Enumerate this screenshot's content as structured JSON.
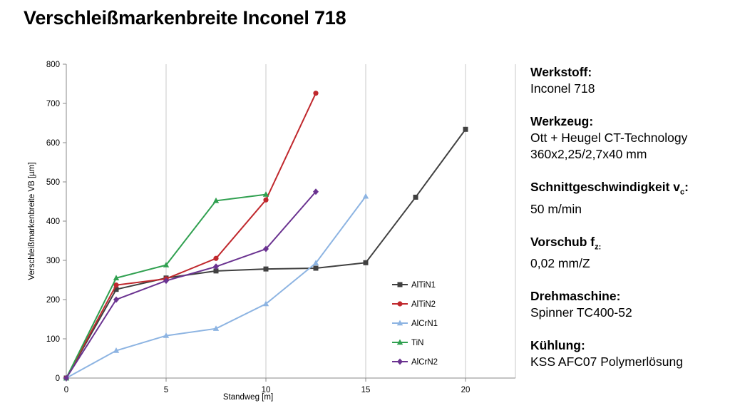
{
  "title": "Verschleißmarkenbreite Inconel 718",
  "info": [
    {
      "label": "Werkstoff:",
      "lines": [
        "Inconel 718"
      ]
    },
    {
      "label": "Werkzeug:",
      "lines": [
        "Ott + Heugel CT-Technology",
        "360x2,25/2,7x40 mm"
      ]
    },
    {
      "label_main": "Schnittgeschwindigkeit v",
      "label_sub": "c",
      "label_end": ":",
      "lines": [
        "50 m/min"
      ]
    },
    {
      "label_main": "Vorschub f",
      "label_sub": "z:",
      "label_end": "",
      "lines": [
        "0,02 mm/Z"
      ]
    },
    {
      "label": "Drehmaschine:",
      "lines": [
        "Spinner TC400-52"
      ]
    },
    {
      "label": "Kühlung:",
      "lines": [
        "KSS AFC07 Polymerlösung"
      ]
    }
  ],
  "chart_data": {
    "type": "line",
    "xlabel": "Standweg [m]",
    "ylabel": "Verschleißmarkenbreite VB [µm]",
    "xlim": [
      0,
      22.5
    ],
    "ylim": [
      0,
      800
    ],
    "xticks": [
      0,
      5,
      10,
      15,
      20
    ],
    "yticks": [
      0,
      100,
      200,
      300,
      400,
      500,
      600,
      700,
      800
    ],
    "grid": "vertical",
    "legend_position": "lower-right",
    "series": [
      {
        "name": "AlTiN1",
        "color": "#404040",
        "marker": "square",
        "x": [
          0,
          2.5,
          5,
          7.5,
          10,
          12.5,
          15,
          17.5,
          20
        ],
        "y": [
          0,
          226,
          255,
          273,
          278,
          280,
          294,
          461,
          634
        ]
      },
      {
        "name": "AlTiN2",
        "color": "#c0282d",
        "marker": "circle",
        "x": [
          0,
          2.5,
          5,
          7.5,
          10,
          12.5
        ],
        "y": [
          0,
          237,
          253,
          305,
          454,
          726
        ]
      },
      {
        "name": "AlCrN1",
        "color": "#8db4e2",
        "marker": "triangle",
        "x": [
          0,
          2.5,
          5,
          7.5,
          10,
          12.5,
          15
        ],
        "y": [
          0,
          70,
          108,
          126,
          189,
          293,
          463
        ]
      },
      {
        "name": "TiN",
        "color": "#30a050",
        "marker": "triangle",
        "x": [
          0,
          2.5,
          5,
          7.5,
          10
        ],
        "y": [
          0,
          255,
          288,
          452,
          468
        ]
      },
      {
        "name": "AlCrN2",
        "color": "#6a3290",
        "marker": "diamond",
        "x": [
          0,
          2.5,
          5,
          7.5,
          10,
          12.5
        ],
        "y": [
          0,
          200,
          248,
          284,
          329,
          475
        ]
      }
    ]
  }
}
